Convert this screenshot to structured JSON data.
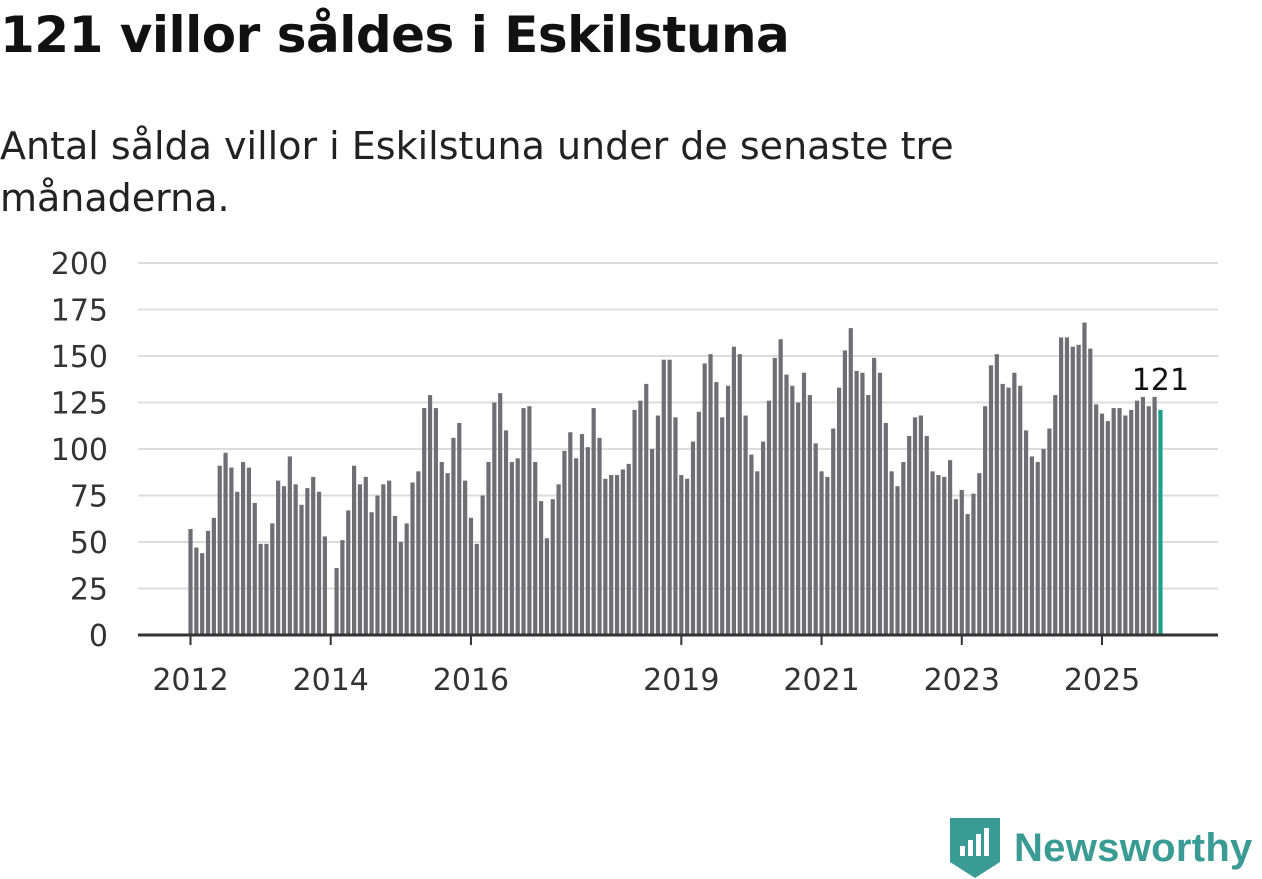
{
  "header": {
    "title": "121 villor såldes i Eskilstuna",
    "subtitle": "Antal sålda villor i Eskilstuna under de senaste tre månaderna."
  },
  "brand": {
    "name": "Newsworthy",
    "color": "#3a9a94"
  },
  "chart_data": {
    "type": "bar",
    "title": "121 villor såldes i Eskilstuna",
    "subtitle": "Antal sålda villor i Eskilstuna under de senaste tre månaderna.",
    "xlabel": "",
    "ylabel": "",
    "ylim": [
      0,
      200
    ],
    "yticks": [
      0,
      25,
      50,
      75,
      100,
      125,
      150,
      175,
      200
    ],
    "grid": true,
    "start": "2012-01",
    "frequency": "monthly",
    "xtick_labels": [
      {
        "label": "2012",
        "index": 0
      },
      {
        "label": "2014",
        "index": 24
      },
      {
        "label": "2016",
        "index": 48
      },
      {
        "label": "2019",
        "index": 84
      },
      {
        "label": "2021",
        "index": 108
      },
      {
        "label": "2023",
        "index": 132
      },
      {
        "label": "2025",
        "index": 156
      }
    ],
    "bar_color": "#6e6e74",
    "highlight_color": "#1a9e8f",
    "highlight_label": "121",
    "values": [
      57,
      47,
      44,
      56,
      63,
      91,
      98,
      90,
      77,
      93,
      90,
      71,
      49,
      49,
      60,
      83,
      80,
      96,
      81,
      70,
      79,
      85,
      77,
      53,
      null,
      36,
      51,
      67,
      91,
      81,
      85,
      66,
      75,
      81,
      83,
      64,
      50,
      60,
      82,
      88,
      122,
      129,
      122,
      93,
      87,
      106,
      114,
      83,
      63,
      49,
      75,
      93,
      125,
      130,
      110,
      93,
      95,
      122,
      123,
      93,
      72,
      52,
      73,
      81,
      99,
      109,
      95,
      108,
      101,
      122,
      106,
      84,
      86,
      86,
      89,
      92,
      121,
      126,
      135,
      100,
      118,
      148,
      148,
      117,
      86,
      84,
      104,
      120,
      146,
      151,
      136,
      117,
      134,
      155,
      151,
      118,
      97,
      88,
      104,
      126,
      149,
      159,
      140,
      134,
      125,
      141,
      129,
      103,
      88,
      85,
      111,
      133,
      153,
      165,
      142,
      141,
      129,
      149,
      141,
      114,
      88,
      80,
      93,
      107,
      117,
      118,
      107,
      88,
      86,
      85,
      94,
      73,
      78,
      65,
      76,
      87,
      123,
      145,
      151,
      135,
      133,
      141,
      134,
      110,
      96,
      93,
      100,
      111,
      129,
      160,
      160,
      155,
      156,
      168,
      154,
      124,
      119,
      115,
      122,
      122,
      118,
      121,
      126,
      128,
      123,
      128,
      121
    ]
  }
}
